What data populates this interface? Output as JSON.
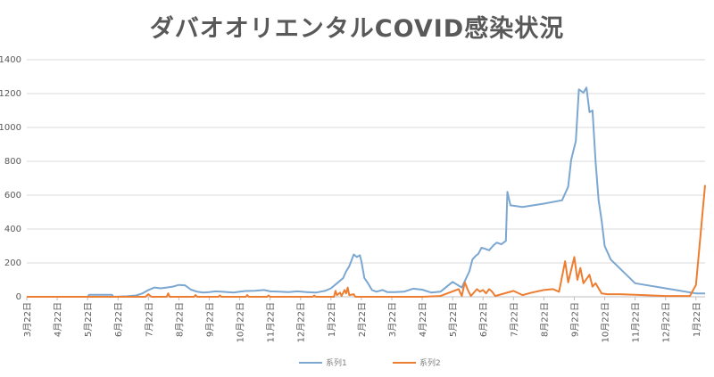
{
  "chart_data": {
    "type": "line",
    "title": "ダバオオリエンタルCOVID感染状況",
    "xlabel": "",
    "ylabel": "",
    "ylim": [
      0,
      1400
    ],
    "yticks": [
      "0",
      "200",
      "400",
      "600",
      "800",
      "1000",
      "1200",
      "1400"
    ],
    "x_tick_labels": [
      "3月22日",
      "4月22日",
      "5月22日",
      "6月22日",
      "7月22日",
      "8月22日",
      "9月22日",
      "10月22日",
      "11月22日",
      "12月22日",
      "1月22日",
      "2月22日",
      "3月22日",
      "4月22日",
      "5月22日",
      "6月22日",
      "7月22日",
      "8月22日",
      "9月22日",
      "10月22日",
      "11月22日",
      "12月22日",
      "1月22日"
    ],
    "x_range_months": [
      0,
      22.3
    ],
    "grid": "horizontal",
    "legend_position": "bottom",
    "series": [
      {
        "name": "系列1",
        "color": "#7ba7d1",
        "points": [
          [
            0,
            0
          ],
          [
            2,
            0
          ],
          [
            2.05,
            12
          ],
          [
            2.8,
            12
          ],
          [
            2.85,
            0
          ],
          [
            3.3,
            3
          ],
          [
            3.6,
            8
          ],
          [
            3.8,
            20
          ],
          [
            4.0,
            40
          ],
          [
            4.2,
            55
          ],
          [
            4.4,
            50
          ],
          [
            4.6,
            55
          ],
          [
            4.8,
            60
          ],
          [
            5.0,
            70
          ],
          [
            5.2,
            68
          ],
          [
            5.4,
            42
          ],
          [
            5.6,
            30
          ],
          [
            5.8,
            25
          ],
          [
            6.0,
            28
          ],
          [
            6.2,
            32
          ],
          [
            6.4,
            30
          ],
          [
            6.6,
            28
          ],
          [
            6.8,
            25
          ],
          [
            7.0,
            30
          ],
          [
            7.2,
            34
          ],
          [
            7.5,
            36
          ],
          [
            7.8,
            40
          ],
          [
            8.0,
            32
          ],
          [
            8.3,
            30
          ],
          [
            8.6,
            28
          ],
          [
            8.9,
            32
          ],
          [
            9.2,
            28
          ],
          [
            9.5,
            25
          ],
          [
            9.8,
            35
          ],
          [
            10.0,
            50
          ],
          [
            10.2,
            80
          ],
          [
            10.4,
            110
          ],
          [
            10.5,
            150
          ],
          [
            10.6,
            180
          ],
          [
            10.75,
            250
          ],
          [
            10.85,
            235
          ],
          [
            10.95,
            245
          ],
          [
            11.0,
            210
          ],
          [
            11.1,
            110
          ],
          [
            11.2,
            85
          ],
          [
            11.35,
            40
          ],
          [
            11.5,
            30
          ],
          [
            11.7,
            40
          ],
          [
            11.85,
            28
          ],
          [
            12.1,
            28
          ],
          [
            12.4,
            30
          ],
          [
            12.7,
            48
          ],
          [
            13.0,
            42
          ],
          [
            13.3,
            25
          ],
          [
            13.6,
            30
          ],
          [
            14.0,
            88
          ],
          [
            14.3,
            55
          ],
          [
            14.55,
            150
          ],
          [
            14.65,
            220
          ],
          [
            14.75,
            240
          ],
          [
            14.85,
            255
          ],
          [
            14.95,
            290
          ],
          [
            15.05,
            285
          ],
          [
            15.2,
            275
          ],
          [
            15.35,
            305
          ],
          [
            15.45,
            320
          ],
          [
            15.6,
            310
          ],
          [
            15.75,
            330
          ],
          [
            15.8,
            620
          ],
          [
            15.9,
            540
          ],
          [
            16.3,
            530
          ],
          [
            17.0,
            550
          ],
          [
            17.6,
            570
          ],
          [
            17.8,
            650
          ],
          [
            17.9,
            810
          ],
          [
            18.05,
            920
          ],
          [
            18.15,
            1225
          ],
          [
            18.3,
            1205
          ],
          [
            18.4,
            1235
          ],
          [
            18.5,
            1090
          ],
          [
            18.6,
            1100
          ],
          [
            18.7,
            800
          ],
          [
            18.8,
            570
          ],
          [
            18.9,
            450
          ],
          [
            19.0,
            300
          ],
          [
            19.05,
            280
          ],
          [
            19.2,
            220
          ],
          [
            20.0,
            80
          ],
          [
            21.0,
            50
          ],
          [
            22.0,
            20
          ],
          [
            22.3,
            20
          ]
        ]
      },
      {
        "name": "系列2",
        "color": "#ed7d31",
        "points": [
          [
            0,
            0
          ],
          [
            3.9,
            0
          ],
          [
            4.0,
            15
          ],
          [
            4.1,
            0
          ],
          [
            4.6,
            0
          ],
          [
            4.65,
            20
          ],
          [
            4.7,
            0
          ],
          [
            5.5,
            0
          ],
          [
            5.55,
            10
          ],
          [
            5.6,
            0
          ],
          [
            6.3,
            0
          ],
          [
            6.35,
            8
          ],
          [
            6.4,
            0
          ],
          [
            7.2,
            0
          ],
          [
            7.25,
            10
          ],
          [
            7.3,
            0
          ],
          [
            7.9,
            0
          ],
          [
            7.95,
            8
          ],
          [
            8.0,
            0
          ],
          [
            9.4,
            0
          ],
          [
            9.45,
            8
          ],
          [
            9.5,
            0
          ],
          [
            10.1,
            0
          ],
          [
            10.15,
            35
          ],
          [
            10.2,
            10
          ],
          [
            10.3,
            25
          ],
          [
            10.35,
            5
          ],
          [
            10.45,
            40
          ],
          [
            10.5,
            20
          ],
          [
            10.55,
            55
          ],
          [
            10.6,
            10
          ],
          [
            10.75,
            15
          ],
          [
            10.8,
            0
          ],
          [
            11.2,
            0
          ],
          [
            11.4,
            0
          ],
          [
            13.0,
            0
          ],
          [
            13.6,
            5
          ],
          [
            14.2,
            45
          ],
          [
            14.3,
            5
          ],
          [
            14.4,
            85
          ],
          [
            14.5,
            40
          ],
          [
            14.6,
            5
          ],
          [
            14.8,
            45
          ],
          [
            14.9,
            30
          ],
          [
            15.0,
            40
          ],
          [
            15.1,
            20
          ],
          [
            15.2,
            45
          ],
          [
            15.3,
            30
          ],
          [
            15.4,
            5
          ],
          [
            16.0,
            35
          ],
          [
            16.3,
            10
          ],
          [
            16.6,
            25
          ],
          [
            17.0,
            40
          ],
          [
            17.3,
            45
          ],
          [
            17.5,
            30
          ],
          [
            17.7,
            210
          ],
          [
            17.8,
            85
          ],
          [
            18.0,
            235
          ],
          [
            18.1,
            100
          ],
          [
            18.2,
            170
          ],
          [
            18.3,
            80
          ],
          [
            18.5,
            130
          ],
          [
            18.6,
            60
          ],
          [
            18.7,
            80
          ],
          [
            18.9,
            20
          ],
          [
            19.1,
            15
          ],
          [
            19.5,
            15
          ],
          [
            20.0,
            12
          ],
          [
            21.0,
            5
          ],
          [
            21.8,
            5
          ],
          [
            22.0,
            70
          ],
          [
            22.3,
            660
          ]
        ]
      }
    ]
  }
}
